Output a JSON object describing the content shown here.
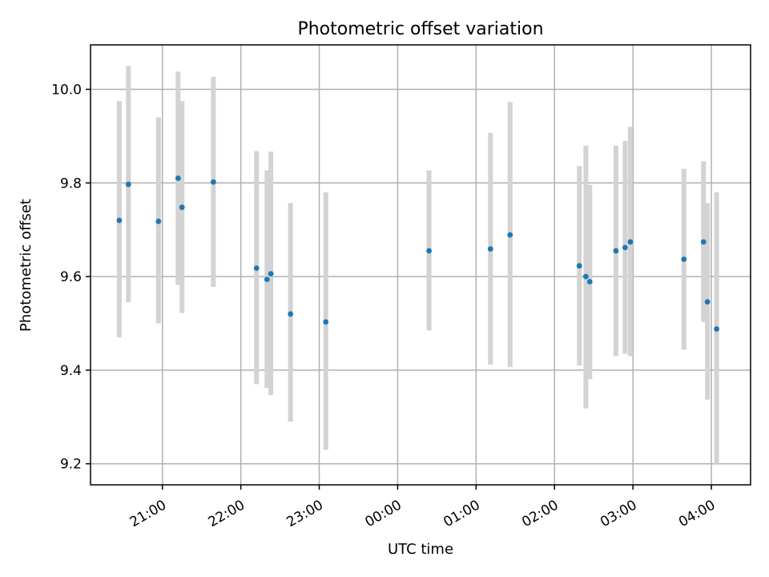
{
  "chart_data": {
    "type": "scatter",
    "title": "Photometric offset variation",
    "xlabel": "UTC time",
    "ylabel": "Photometric offset",
    "x_axis": "time",
    "x_range": [
      "20:05",
      "04:30"
    ],
    "ylim": [
      9.155,
      10.095
    ],
    "x_ticks": [
      "21:00",
      "22:00",
      "23:00",
      "00:00",
      "01:00",
      "02:00",
      "03:00",
      "04:00"
    ],
    "y_ticks": [
      9.2,
      9.4,
      9.6,
      9.8,
      10.0
    ],
    "y_tick_labels": [
      "9.2",
      "9.4",
      "9.6",
      "9.8",
      "10.0"
    ],
    "grid": true,
    "x_tick_rotation": -30,
    "marker_color": "#1f77b4",
    "errorbar_color": "#d3d3d3",
    "points": [
      {
        "x": "20:27",
        "y": 9.72,
        "ylo": 9.47,
        "yhi": 9.975
      },
      {
        "x": "20:34",
        "y": 9.797,
        "ylo": 9.545,
        "yhi": 10.05
      },
      {
        "x": "20:57",
        "y": 9.718,
        "ylo": 9.5,
        "yhi": 9.94
      },
      {
        "x": "21:12",
        "y": 9.81,
        "ylo": 9.582,
        "yhi": 10.038
      },
      {
        "x": "21:15",
        "y": 9.748,
        "ylo": 9.522,
        "yhi": 9.975
      },
      {
        "x": "21:39",
        "y": 9.802,
        "ylo": 9.578,
        "yhi": 10.027
      },
      {
        "x": "22:12",
        "y": 9.618,
        "ylo": 9.37,
        "yhi": 9.868
      },
      {
        "x": "22:20",
        "y": 9.594,
        "ylo": 9.362,
        "yhi": 9.827
      },
      {
        "x": "22:23",
        "y": 9.606,
        "ylo": 9.347,
        "yhi": 9.867
      },
      {
        "x": "22:38",
        "y": 9.52,
        "ylo": 9.29,
        "yhi": 9.757
      },
      {
        "x": "23:05",
        "y": 9.503,
        "ylo": 9.23,
        "yhi": 9.78
      },
      {
        "x": "00:24",
        "y": 9.655,
        "ylo": 9.485,
        "yhi": 9.827
      },
      {
        "x": "01:11",
        "y": 9.659,
        "ylo": 9.412,
        "yhi": 9.907
      },
      {
        "x": "01:26",
        "y": 9.689,
        "ylo": 9.407,
        "yhi": 9.973
      },
      {
        "x": "02:19",
        "y": 9.623,
        "ylo": 9.41,
        "yhi": 9.836
      },
      {
        "x": "02:24",
        "y": 9.6,
        "ylo": 9.318,
        "yhi": 9.88
      },
      {
        "x": "02:27",
        "y": 9.589,
        "ylo": 9.381,
        "yhi": 9.796
      },
      {
        "x": "02:47",
        "y": 9.655,
        "ylo": 9.43,
        "yhi": 9.88
      },
      {
        "x": "02:54",
        "y": 9.662,
        "ylo": 9.435,
        "yhi": 9.89
      },
      {
        "x": "02:58",
        "y": 9.674,
        "ylo": 9.43,
        "yhi": 9.92
      },
      {
        "x": "03:39",
        "y": 9.637,
        "ylo": 9.444,
        "yhi": 9.83
      },
      {
        "x": "03:54",
        "y": 9.674,
        "ylo": 9.503,
        "yhi": 9.846
      },
      {
        "x": "03:57",
        "y": 9.546,
        "ylo": 9.337,
        "yhi": 9.757
      },
      {
        "x": "04:04",
        "y": 9.488,
        "ylo": 9.2,
        "yhi": 9.78
      }
    ]
  }
}
